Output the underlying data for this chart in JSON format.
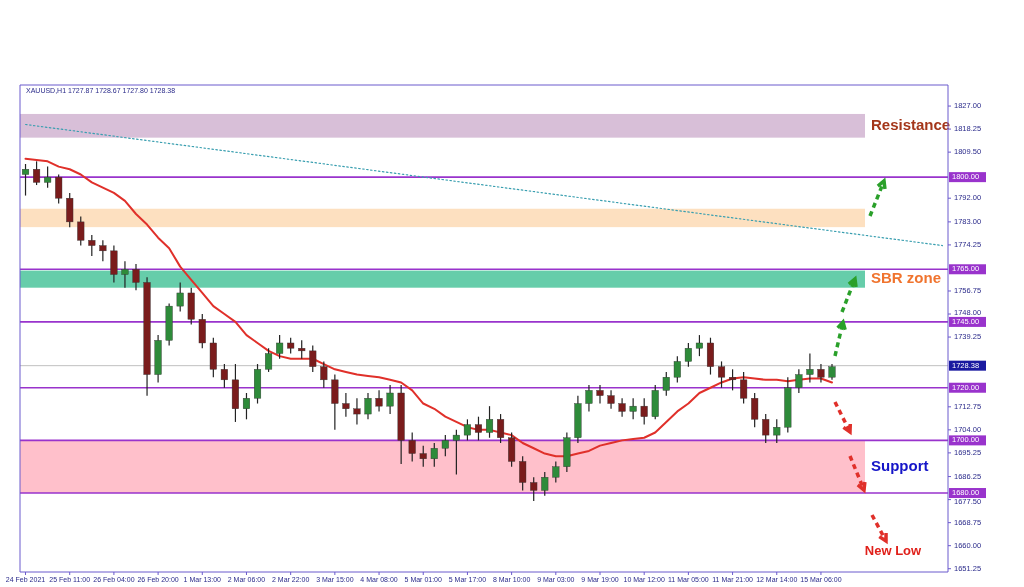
{
  "chart_data": {
    "type": "candlestick",
    "title": "XAUUSD,H1  1727.87 1728.67 1727.80 1728.38",
    "categories": [
      "24 Feb 2021",
      null,
      null,
      null,
      "25 Feb 11:00",
      null,
      null,
      null,
      "26 Feb 04:00",
      null,
      null,
      null,
      "26 Feb 20:00",
      null,
      null,
      null,
      "1 Mar 13:00",
      null,
      null,
      null,
      "2 Mar 06:00",
      null,
      null,
      null,
      "2 Mar 22:00",
      null,
      null,
      null,
      "3 Mar 15:00",
      null,
      null,
      null,
      "4 Mar 08:00",
      null,
      null,
      null,
      "5 Mar 01:00",
      null,
      null,
      null,
      "5 Mar 17:00",
      null,
      null,
      null,
      "8 Mar 10:00",
      null,
      null,
      null,
      "9 Mar 03:00",
      null,
      null,
      null,
      "9 Mar 19:00",
      null,
      null,
      null,
      "10 Mar 12:00",
      null,
      null,
      null,
      "11 Mar 05:00",
      null,
      null,
      null,
      "11 Mar 21:00",
      null,
      null,
      null,
      "12 Mar 14:00",
      null,
      null,
      null,
      "15 Mar 06:00",
      null,
      null,
      null,
      null,
      null,
      null,
      null,
      null,
      null,
      null,
      null
    ],
    "ohlc": [
      [
        1801,
        1805,
        1793,
        1803
      ],
      [
        1803,
        1806,
        1797,
        1798
      ],
      [
        1798,
        1804,
        1796,
        1800
      ],
      [
        1800,
        1801,
        1790,
        1792
      ],
      [
        1792,
        1794,
        1781,
        1783
      ],
      [
        1783,
        1785,
        1774,
        1776
      ],
      [
        1776,
        1778,
        1770,
        1774
      ],
      [
        1774,
        1776,
        1768,
        1772
      ],
      [
        1772,
        1774,
        1760,
        1763
      ],
      [
        1763,
        1768,
        1758,
        1765
      ],
      [
        1765,
        1767,
        1757,
        1760
      ],
      [
        1760,
        1762,
        1717,
        1725
      ],
      [
        1725,
        1740,
        1722,
        1738
      ],
      [
        1738,
        1752,
        1736,
        1751
      ],
      [
        1751,
        1760,
        1749,
        1756
      ],
      [
        1756,
        1758,
        1744,
        1746
      ],
      [
        1746,
        1748,
        1735,
        1737
      ],
      [
        1737,
        1739,
        1724,
        1727
      ],
      [
        1727,
        1729,
        1720,
        1723
      ],
      [
        1723,
        1729,
        1707,
        1712
      ],
      [
        1712,
        1718,
        1708,
        1716
      ],
      [
        1716,
        1729,
        1714,
        1727
      ],
      [
        1727,
        1735,
        1726,
        1733
      ],
      [
        1733,
        1740,
        1731,
        1737
      ],
      [
        1737,
        1739,
        1733,
        1735
      ],
      [
        1735,
        1738,
        1731,
        1734
      ],
      [
        1734,
        1736,
        1726,
        1728
      ],
      [
        1728,
        1730,
        1720,
        1723
      ],
      [
        1723,
        1725,
        1704,
        1714
      ],
      [
        1714,
        1718,
        1709,
        1712
      ],
      [
        1712,
        1716,
        1706,
        1710
      ],
      [
        1710,
        1718,
        1708,
        1716
      ],
      [
        1716,
        1719,
        1711,
        1713
      ],
      [
        1713,
        1721,
        1710,
        1718
      ],
      [
        1718,
        1721,
        1691,
        1700
      ],
      [
        1700,
        1703,
        1692,
        1695
      ],
      [
        1695,
        1698,
        1690,
        1693
      ],
      [
        1693,
        1699,
        1690,
        1697
      ],
      [
        1697,
        1702,
        1694,
        1700
      ],
      [
        1700,
        1704,
        1687,
        1702
      ],
      [
        1702,
        1708,
        1700,
        1706
      ],
      [
        1706,
        1709,
        1700,
        1703
      ],
      [
        1703,
        1713,
        1701,
        1708
      ],
      [
        1708,
        1710,
        1699,
        1701
      ],
      [
        1701,
        1703,
        1690,
        1692
      ],
      [
        1692,
        1694,
        1681,
        1684
      ],
      [
        1684,
        1686,
        1677,
        1681
      ],
      [
        1681,
        1688,
        1679,
        1686
      ],
      [
        1686,
        1692,
        1684,
        1690
      ],
      [
        1690,
        1703,
        1688,
        1701
      ],
      [
        1701,
        1717,
        1699,
        1714
      ],
      [
        1714,
        1721,
        1711,
        1719
      ],
      [
        1719,
        1721,
        1714,
        1717
      ],
      [
        1717,
        1719,
        1712,
        1714
      ],
      [
        1714,
        1716,
        1709,
        1711
      ],
      [
        1711,
        1716,
        1708,
        1713
      ],
      [
        1713,
        1716,
        1706,
        1709
      ],
      [
        1709,
        1721,
        1708,
        1719
      ],
      [
        1719,
        1726,
        1717,
        1724
      ],
      [
        1724,
        1732,
        1722,
        1730
      ],
      [
        1730,
        1737,
        1728,
        1735
      ],
      [
        1735,
        1740,
        1732,
        1737
      ],
      [
        1737,
        1739,
        1725,
        1728
      ],
      [
        1728,
        1730,
        1720,
        1724
      ],
      [
        1724,
        1727,
        1719,
        1723
      ],
      [
        1723,
        1726,
        1714,
        1716
      ],
      [
        1716,
        1718,
        1705,
        1708
      ],
      [
        1708,
        1710,
        1699,
        1702
      ],
      [
        1702,
        1708,
        1699,
        1705
      ],
      [
        1705,
        1724,
        1703,
        1720
      ],
      [
        1720,
        1727,
        1718,
        1725
      ],
      [
        1725,
        1733,
        1722,
        1727
      ],
      [
        1727,
        1729,
        1722,
        1724
      ],
      [
        1724,
        1729,
        1723,
        1728
      ],
      null,
      null,
      null,
      null,
      null,
      null,
      null,
      null,
      null,
      null
    ],
    "series": [
      {
        "type": "line",
        "color": "#e0302a",
        "values": [
          1807,
          1806.5,
          1806,
          1804,
          1803,
          1801,
          1798,
          1796,
          1794,
          1791,
          1786,
          1782,
          1777,
          1773,
          1766,
          1761,
          1756,
          1751,
          1748,
          1745,
          1740,
          1737,
          1734,
          1732,
          1731,
          1731,
          1731,
          1729,
          1727,
          1726,
          1725,
          1724.5,
          1724,
          1723,
          1722,
          1719,
          1714,
          1712,
          1709,
          1707,
          1705,
          1704,
          1704,
          1703,
          1702,
          1699,
          1697,
          1695,
          1694,
          1694,
          1695,
          1696,
          1698,
          1699,
          1700,
          1700.5,
          1701,
          1703,
          1707,
          1711,
          1714,
          1718,
          1720,
          1722,
          1723.5,
          1724,
          1723.5,
          1723,
          1723,
          1722.5,
          1723,
          1723.5,
          1723.5,
          1722,
          null,
          null,
          null,
          null,
          null,
          null,
          null,
          null,
          null,
          null
        ]
      },
      {
        "type": "line",
        "color": "#3a9fb0",
        "line_style": "dotted",
        "values": [
          1820,
          null,
          null,
          null,
          null,
          null,
          null,
          null,
          null,
          null,
          null,
          null,
          null,
          null,
          null,
          null,
          null,
          null,
          null,
          null,
          null,
          null,
          null,
          null,
          null,
          null,
          null,
          null,
          null,
          null,
          null,
          null,
          null,
          null,
          null,
          null,
          null,
          null,
          null,
          null,
          null,
          null,
          null,
          null,
          null,
          null,
          null,
          null,
          null,
          null,
          null,
          null,
          null,
          null,
          null,
          null,
          null,
          null,
          null,
          null,
          null,
          null,
          null,
          null,
          null,
          null,
          null,
          null,
          null,
          null,
          null,
          null,
          null,
          null,
          null,
          null,
          null,
          null,
          null,
          null,
          null,
          null,
          null,
          1774
        ]
      }
    ],
    "ylim": [
      1650,
      1835
    ],
    "yticks": [
      {
        "value": 1827,
        "label": "1827.00"
      },
      {
        "value": 1818.25,
        "label": "1818.25"
      },
      {
        "value": 1809.5,
        "label": "1809.50"
      },
      {
        "value": 1792,
        "label": "1792.00"
      },
      {
        "value": 1783,
        "label": "1783.00"
      },
      {
        "value": 1774.25,
        "label": "1774.25"
      },
      {
        "value": 1756.75,
        "label": "1756.75"
      },
      {
        "value": 1748,
        "label": "1748.00"
      },
      {
        "value": 1739.25,
        "label": "1739.25"
      },
      {
        "value": 1712.75,
        "label": "1712.75"
      },
      {
        "value": 1704,
        "label": "1704.00"
      },
      {
        "value": 1695.25,
        "label": "1695.25"
      },
      {
        "value": 1686.25,
        "label": "1686.25"
      },
      {
        "value": 1677.5,
        "label": "1677.50"
      },
      {
        "value": 1668.75,
        "label": "1668.75"
      },
      {
        "value": 1660,
        "label": "1660.00"
      },
      {
        "value": 1651.25,
        "label": "1651.25"
      }
    ],
    "bands": [
      {
        "axis": "y",
        "from": 1815,
        "to": 1824,
        "label": "Resistance",
        "color": "#d8bfd8"
      },
      {
        "axis": "y",
        "from": 1781,
        "to": 1788,
        "color": "#fde0c0"
      },
      {
        "axis": "y",
        "from": 1758,
        "to": 1764.5,
        "label": "SBR zone",
        "color": "#66cdaa"
      },
      {
        "axis": "y",
        "from": 1680,
        "to": 1700,
        "label": "Support",
        "color": "#ffc0cb"
      }
    ],
    "ref_lines": [
      {
        "axis": "y",
        "value": 1800,
        "label": "1800.00",
        "color": "#9933cc"
      },
      {
        "axis": "y",
        "value": 1765,
        "label": "1765.00",
        "color": "#9933cc"
      },
      {
        "axis": "y",
        "value": 1745,
        "label": "1745.00",
        "color": "#9933cc"
      },
      {
        "axis": "y",
        "value": 1728.38,
        "label": "1728.38",
        "color": "#c0c0c0"
      },
      {
        "axis": "y",
        "value": 1720,
        "label": "1720.00",
        "color": "#9933cc"
      },
      {
        "axis": "y",
        "value": 1700,
        "label": "1700.00",
        "color": "#9933cc"
      },
      {
        "axis": "y",
        "value": 1680,
        "label": "1680.00",
        "color": "#9933cc"
      }
    ],
    "annotations": [
      "New Low"
    ],
    "grid": false
  }
}
